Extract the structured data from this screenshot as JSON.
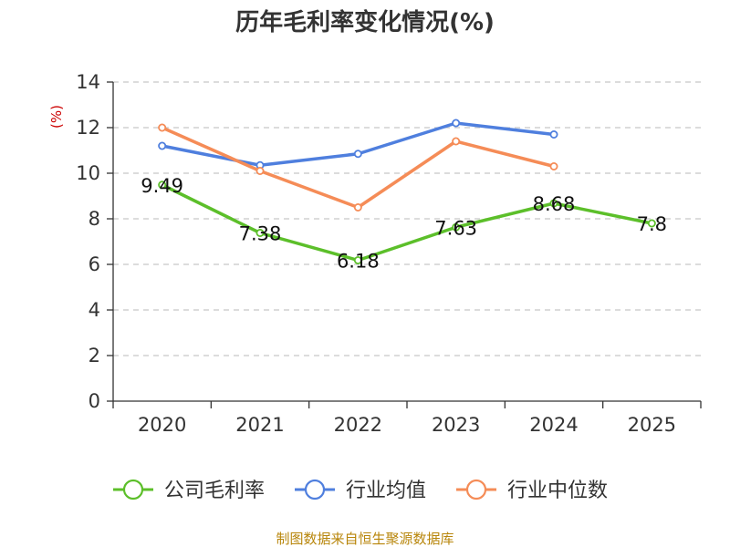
{
  "chart_data": {
    "type": "line",
    "title": "历年毛利率变化情况(%)",
    "ylabel": "(%)",
    "xlabel": "",
    "categories": [
      "2020",
      "2021",
      "2022",
      "2023",
      "2024",
      "2025"
    ],
    "ylim": [
      0,
      14
    ],
    "yticks": [
      0,
      2,
      4,
      6,
      8,
      10,
      12,
      14
    ],
    "grid": true,
    "legend_position": "bottom",
    "series": [
      {
        "name": "公司毛利率",
        "color": "#5cbf2a",
        "values": [
          9.49,
          7.38,
          6.18,
          7.63,
          8.68,
          7.8
        ],
        "labels": [
          "9.49",
          "7.38",
          "6.18",
          "7.63",
          "8.68",
          "7.8"
        ]
      },
      {
        "name": "行业均值",
        "color": "#4f7fde",
        "values": [
          11.2,
          10.35,
          10.85,
          12.2,
          11.7,
          null
        ]
      },
      {
        "name": "行业中位数",
        "color": "#f58c57",
        "values": [
          12.0,
          10.1,
          8.5,
          11.4,
          10.3,
          null
        ]
      }
    ]
  },
  "source": "制图数据来自恒生聚源数据库"
}
